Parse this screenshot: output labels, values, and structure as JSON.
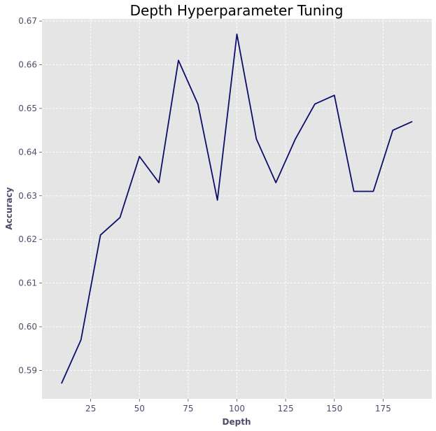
{
  "chart_data": {
    "type": "line",
    "title": "Depth Hyperparameter Tuning",
    "xlabel": "Depth",
    "ylabel": "Accuracy",
    "xlim": [
      0,
      200
    ],
    "ylim": [
      0.5835,
      0.6705
    ],
    "xticks": [
      25,
      50,
      75,
      100,
      125,
      150,
      175
    ],
    "xtick_labels": [
      "25",
      "50",
      "75",
      "100",
      "125",
      "150",
      "175"
    ],
    "yticks": [
      0.59,
      0.6,
      0.61,
      0.62,
      0.63,
      0.64,
      0.65,
      0.66,
      0.67
    ],
    "ytick_labels": [
      "0.59",
      "0.60",
      "0.61",
      "0.62",
      "0.63",
      "0.64",
      "0.65",
      "0.66",
      "0.67"
    ],
    "grid": true,
    "series": [
      {
        "color": "#0d0d6b",
        "x": [
          10,
          20,
          30,
          40,
          50,
          60,
          70,
          80,
          90,
          100,
          110,
          120,
          130,
          140,
          150,
          160,
          170,
          180,
          190
        ],
        "y": [
          0.587,
          0.597,
          0.621,
          0.625,
          0.639,
          0.633,
          0.661,
          0.651,
          0.629,
          0.667,
          0.643,
          0.633,
          0.643,
          0.651,
          0.653,
          0.631,
          0.631,
          0.645,
          0.647
        ]
      }
    ]
  },
  "colors": {
    "plot_background": "#e5e5e5",
    "grid": "#ffffff",
    "line": "#0d0d6b",
    "text": "#4d4d6b"
  }
}
